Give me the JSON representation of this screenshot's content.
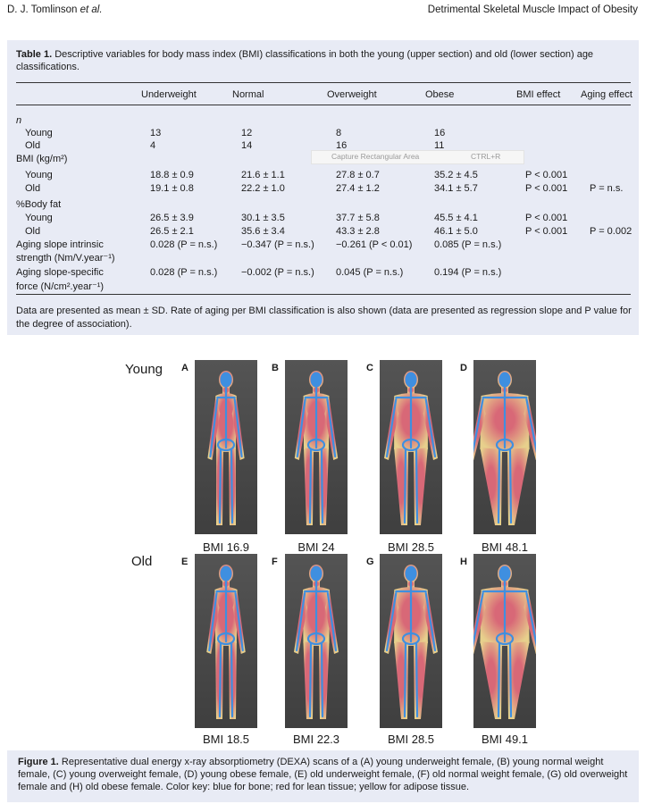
{
  "header": {
    "author_plain": "D. J. Tomlinson ",
    "author_ital": "et al.",
    "title": "Detrimental Skeletal Muscle Impact of Obesity"
  },
  "table": {
    "caption_label": "Table 1.",
    "caption_text": " Descriptive variables for body mass index (BMI) classifications in both the young (upper section) and old (lower section) age classifications.",
    "columns": [
      "Underweight",
      "Normal",
      "Overweight",
      "Obese",
      "BMI effect",
      "Aging effect"
    ],
    "rows": [
      {
        "label": "n",
        "italic": true,
        "cells": [
          "",
          "",
          "",
          "",
          "",
          ""
        ]
      },
      {
        "label": "Young",
        "indent": true,
        "cells": [
          "13",
          "12",
          "8",
          "16",
          "",
          ""
        ]
      },
      {
        "label": "Old",
        "indent": true,
        "cells": [
          "4",
          "14",
          "16",
          "11",
          "",
          ""
        ]
      },
      {
        "label": "BMI (kg/m²)",
        "cells": [
          "",
          "",
          "",
          "",
          "",
          ""
        ]
      },
      {
        "label": "Young",
        "indent": true,
        "cells": [
          "18.8 ± 0.9",
          "21.6 ± 1.1",
          "27.8 ± 0.7",
          "35.2 ± 4.5",
          "P < 0.001",
          ""
        ]
      },
      {
        "label": "Old",
        "indent": true,
        "cells": [
          "19.1 ± 0.8",
          "22.2 ± 1.0",
          "27.4 ± 1.2",
          "34.1 ± 5.7",
          "P < 0.001",
          "P = n.s."
        ]
      },
      {
        "label": "%Body fat",
        "cells": [
          "",
          "",
          "",
          "",
          "",
          ""
        ]
      },
      {
        "label": "Young",
        "indent": true,
        "cells": [
          "26.5 ± 3.9",
          "30.1 ± 3.5",
          "37.7 ± 5.8",
          "45.5 ± 4.1",
          "P < 0.001",
          ""
        ]
      },
      {
        "label": "Old",
        "indent": true,
        "cells": [
          "26.5 ± 2.1",
          "35.6 ± 3.4",
          "43.3 ± 2.8",
          "46.1 ± 5.0",
          "P < 0.001",
          "P = 0.002"
        ]
      },
      {
        "label": "Aging slope intrinsic",
        "cells": [
          "0.028 (P = n.s.)",
          "−0.347 (P = n.s.)",
          "−0.261 (P < 0.01)",
          "0.085 (P = n.s.)",
          "",
          ""
        ]
      },
      {
        "label": "strength (Nm/V.year⁻¹)",
        "cells": [
          "",
          "",
          "",
          "",
          "",
          ""
        ]
      },
      {
        "label": "Aging slope-specific",
        "cells": [
          "0.028 (P = n.s.)",
          "−0.002 (P = n.s.)",
          "0.045 (P = n.s.)",
          "0.194 (P = n.s.)",
          "",
          ""
        ]
      },
      {
        "label": "force (N/cm².year⁻¹)",
        "cells": [
          "",
          "",
          "",
          "",
          "",
          ""
        ]
      }
    ],
    "note": "Data are presented as mean ± SD. Rate of aging per BMI classification is also shown (data are presented as regression slope and P value for the degree of association)."
  },
  "overlay": {
    "label": "Capture Rectangular Area",
    "shortcut": "CTRL+R"
  },
  "figure": {
    "row_labels": [
      "Young",
      "Old"
    ],
    "panels": [
      {
        "letter": "A",
        "bmi": "BMI 16.9",
        "build": 0.85,
        "fat": 0.15
      },
      {
        "letter": "B",
        "bmi": "BMI 24",
        "build": 0.95,
        "fat": 0.3
      },
      {
        "letter": "C",
        "bmi": "BMI 28.5",
        "build": 1.1,
        "fat": 0.55
      },
      {
        "letter": "D",
        "bmi": "BMI 48.1",
        "build": 1.45,
        "fat": 0.9
      },
      {
        "letter": "E",
        "bmi": "BMI 18.5",
        "build": 0.88,
        "fat": 0.2
      },
      {
        "letter": "F",
        "bmi": "BMI 22.3",
        "build": 0.95,
        "fat": 0.35
      },
      {
        "letter": "G",
        "bmi": "BMI 28.5",
        "build": 1.1,
        "fat": 0.55
      },
      {
        "letter": "H",
        "bmi": "BMI 49.1",
        "build": 1.45,
        "fat": 0.9
      }
    ],
    "caption_label": "Figure 1.",
    "caption_text": " Representative dual energy x-ray absorptiometry (DEXA) scans of a (A) young underweight female, (B) young normal weight female, (C) young overweight female, (D) young obese female, (E) old underweight female, (F) old normal weight female, (G) old overweight female and (H) old obese female. Color key: blue for bone; red for lean tissue; yellow for adipose tissue."
  },
  "colors": {
    "panel_bg": "#e8ebf5",
    "bone": "#3f8fe0",
    "lean": "#e06a7a",
    "fat": "#f0d890"
  }
}
